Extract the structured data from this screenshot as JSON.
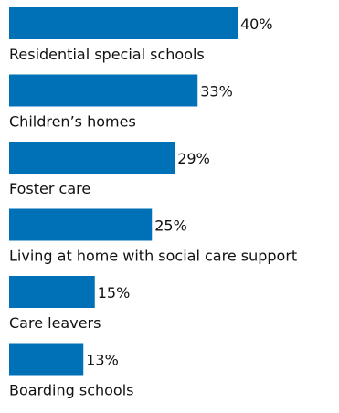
{
  "chart_data": {
    "type": "bar",
    "orientation": "horizontal",
    "bar_color": "#0071b7",
    "value_suffix": "%",
    "categories": [
      "Residential special schools",
      "Children’s homes",
      "Foster care",
      "Living at home with social care support",
      "Care leavers",
      "Boarding schools"
    ],
    "values": [
      40,
      33,
      29,
      25,
      15,
      13
    ],
    "title": "",
    "xlabel": "",
    "ylabel": "",
    "xlim": [
      0,
      40
    ],
    "grid": false,
    "legend": "none"
  }
}
